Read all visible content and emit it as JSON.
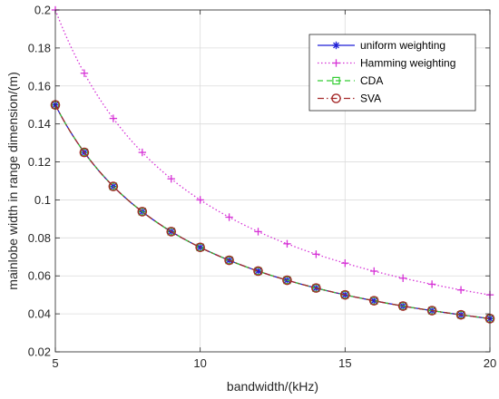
{
  "chart_data": {
    "type": "line",
    "title": "",
    "xlabel": "bandwidth/(kHz)",
    "ylabel": "mainlobe width in range dimension/(m)",
    "xlim": [
      5,
      20
    ],
    "ylim": [
      0.02,
      0.2
    ],
    "grid": true,
    "legend_position": "top-right",
    "x_ticks": [
      5,
      10,
      15,
      20
    ],
    "y_ticks": [
      0.02,
      0.04,
      0.06,
      0.08,
      0.1,
      0.12,
      0.14,
      0.16,
      0.18,
      0.2
    ],
    "x_tick_labels": [
      "5",
      "10",
      "15",
      "20"
    ],
    "y_tick_labels": [
      "0.02",
      "0.04",
      "0.06",
      "0.08",
      "0.1",
      "0.12",
      "0.14",
      "0.16",
      "0.18",
      "0.2"
    ],
    "x": [
      5,
      6,
      7,
      8,
      9,
      10,
      11,
      12,
      13,
      14,
      15,
      16,
      17,
      18,
      19,
      20
    ],
    "series": [
      {
        "name": "uniform weighting",
        "color": "#1f1fd6",
        "dash": "solid",
        "marker": "asterisk",
        "values": [
          0.15,
          0.125,
          0.1071,
          0.0938,
          0.0833,
          0.075,
          0.0682,
          0.0625,
          0.0577,
          0.0536,
          0.05,
          0.0469,
          0.0441,
          0.0417,
          0.0395,
          0.0375
        ]
      },
      {
        "name": "Hamming weighting",
        "color": "#d633d6",
        "dash": "dotted",
        "marker": "plus",
        "values": [
          0.2,
          0.1667,
          0.1429,
          0.125,
          0.1111,
          0.1,
          0.0909,
          0.0833,
          0.0769,
          0.0714,
          0.0667,
          0.0625,
          0.0588,
          0.0556,
          0.0526,
          0.05
        ]
      },
      {
        "name": "CDA",
        "color": "#33cc33",
        "dash": "dashed",
        "marker": "square",
        "values": [
          0.15,
          0.125,
          0.1071,
          0.0938,
          0.0833,
          0.075,
          0.0682,
          0.0625,
          0.0577,
          0.0536,
          0.05,
          0.0469,
          0.0441,
          0.0417,
          0.0395,
          0.0375
        ]
      },
      {
        "name": "SVA",
        "color": "#a52a2a",
        "dash": "dashdot",
        "marker": "circle",
        "values": [
          0.15,
          0.125,
          0.1071,
          0.0938,
          0.0833,
          0.075,
          0.0682,
          0.0625,
          0.0577,
          0.0536,
          0.05,
          0.0469,
          0.0441,
          0.0417,
          0.0395,
          0.0375
        ]
      }
    ]
  }
}
